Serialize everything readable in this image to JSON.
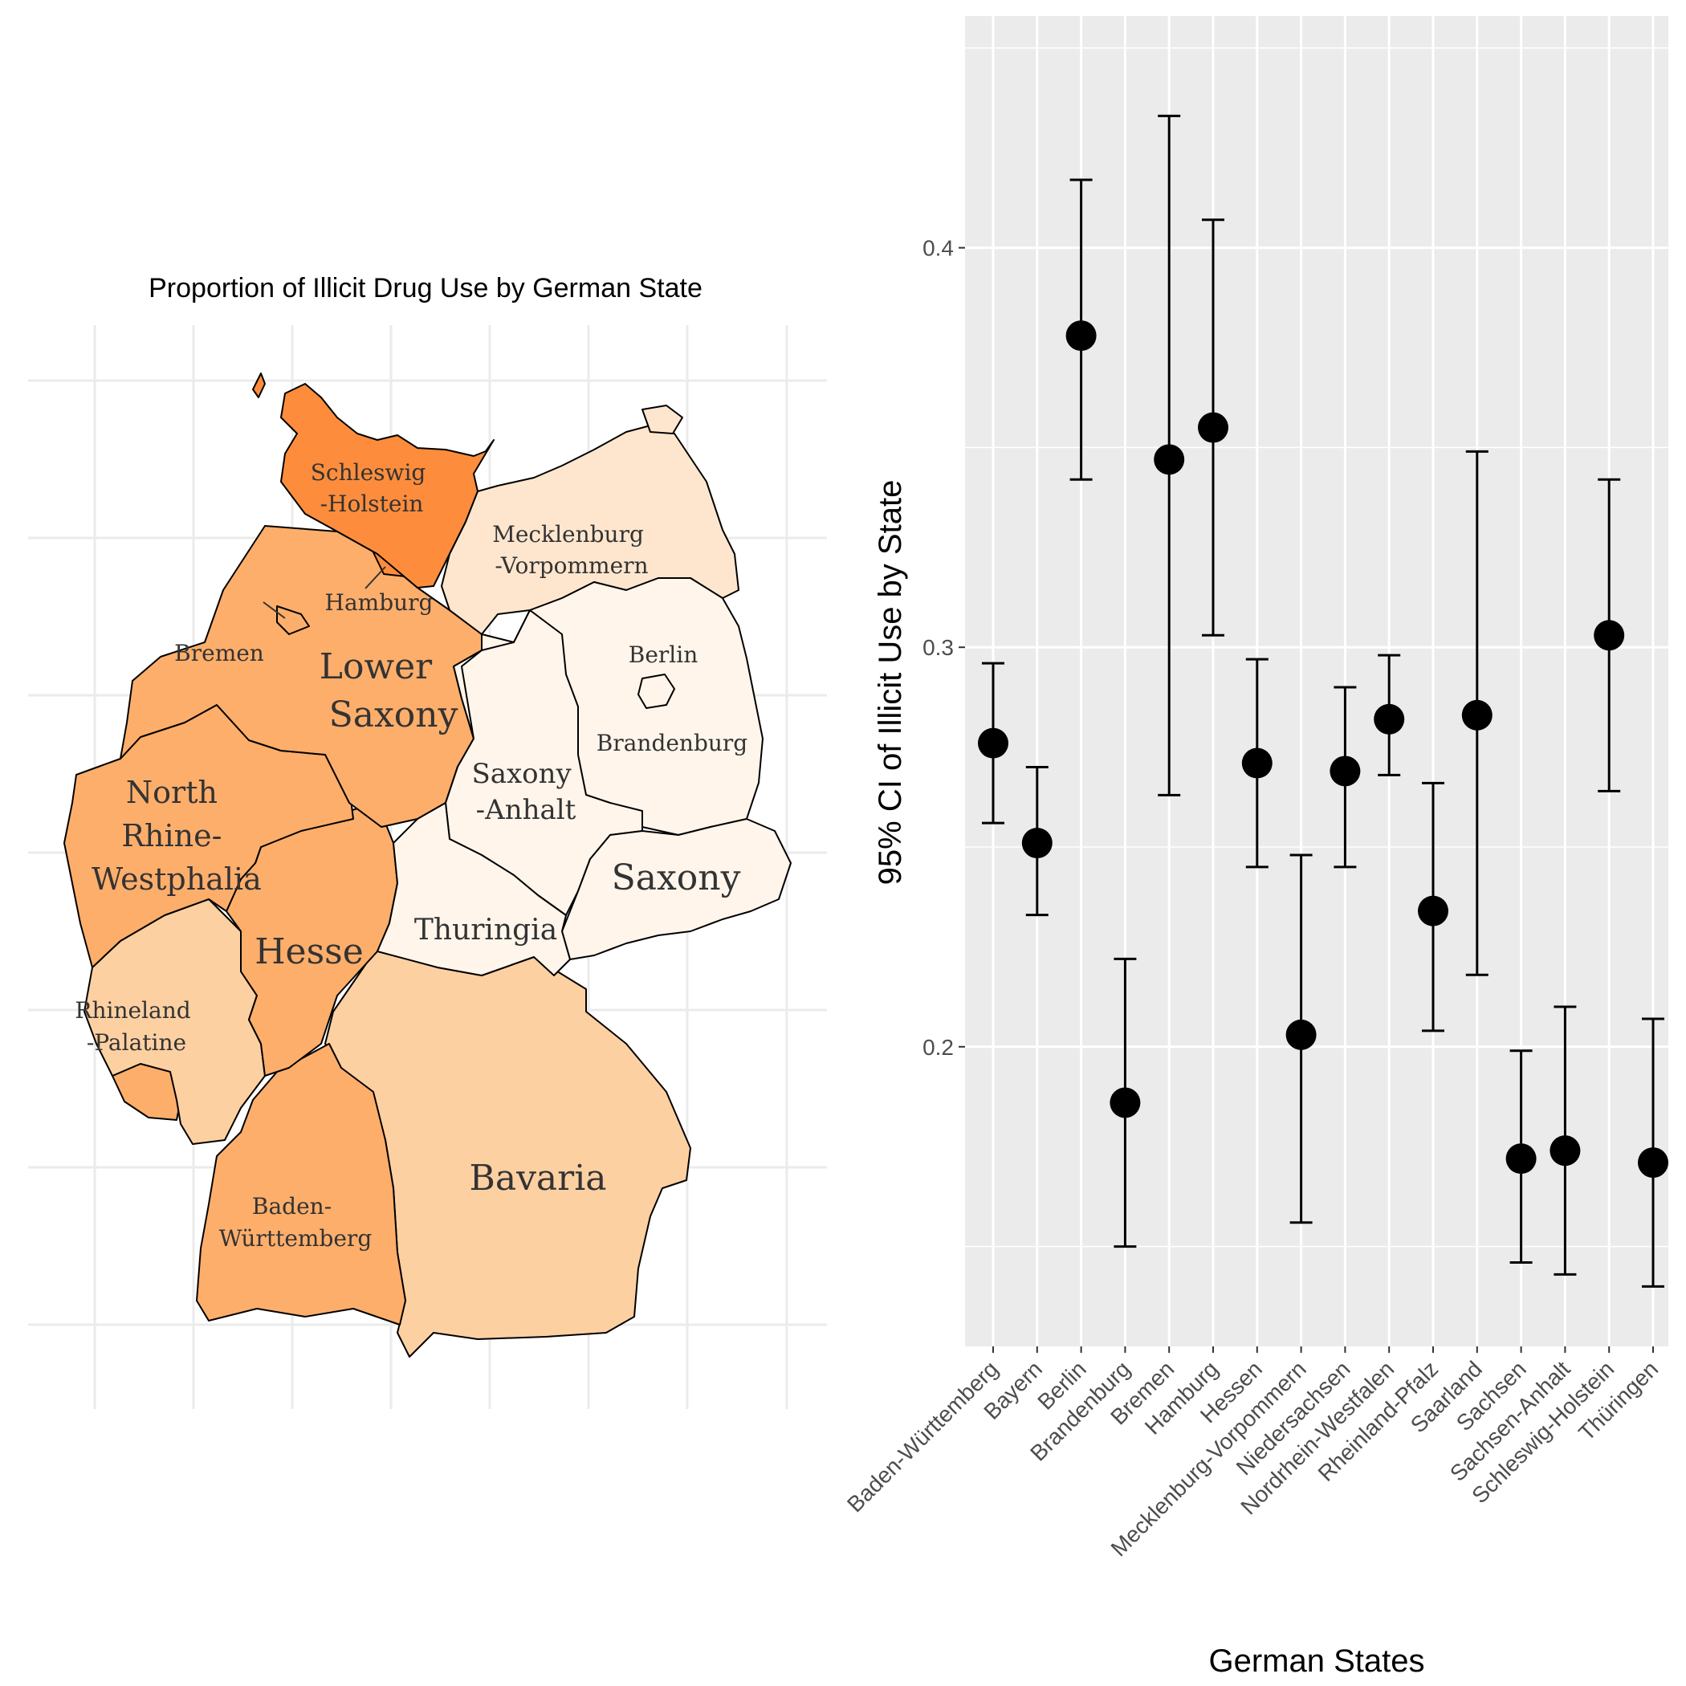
{
  "map": {
    "title": "Proportion of Illicit Drug Use by German State",
    "region_labels": [
      {
        "id": "sh",
        "lines": [
          "Schleswig",
          "-Holstein"
        ]
      },
      {
        "id": "mv",
        "lines": [
          "Mecklenburg",
          "-Vorpommern"
        ]
      },
      {
        "id": "hh",
        "lines": [
          "Hamburg"
        ]
      },
      {
        "id": "hb",
        "lines": [
          "Bremen"
        ]
      },
      {
        "id": "ni",
        "lines": [
          "Lower",
          "Saxony"
        ]
      },
      {
        "id": "be",
        "lines": [
          "Berlin"
        ]
      },
      {
        "id": "bb",
        "lines": [
          "Brandenburg"
        ]
      },
      {
        "id": "st",
        "lines": [
          "Saxony",
          "-Anhalt"
        ]
      },
      {
        "id": "nw",
        "lines": [
          "North",
          "Rhine-",
          "Westphalia"
        ]
      },
      {
        "id": "sn",
        "lines": [
          "Saxony"
        ]
      },
      {
        "id": "th",
        "lines": [
          "Thuringia"
        ]
      },
      {
        "id": "he",
        "lines": [
          "Hesse"
        ]
      },
      {
        "id": "rp",
        "lines": [
          "Rhineland",
          "-Palatine"
        ]
      },
      {
        "id": "by",
        "lines": [
          "Bavaria"
        ]
      },
      {
        "id": "bw",
        "lines": [
          "Baden-",
          "Württemberg"
        ]
      }
    ],
    "colors": {
      "highest": "#fd8d3c",
      "high": "#fdae6b",
      "medium": "#fdd0a2",
      "low": "#fee6ce",
      "lowest": "#fff5eb",
      "grid": "#ebebeb",
      "border": "#000000"
    }
  },
  "chart_data": {
    "type": "errorbar",
    "title": "",
    "xlabel": "German States",
    "ylabel": "95% CI of Illicit Use by State",
    "ylim": [
      0.125,
      0.458
    ],
    "yticks": [
      0.2,
      0.3,
      0.4
    ],
    "ytick_labels": [
      "0.2",
      "0.3",
      "0.4"
    ],
    "categories": [
      "Baden-Württemberg",
      "Bayern",
      "Berlin",
      "Brandenburg",
      "Bremen",
      "Hamburg",
      "Hessen",
      "Mecklenburg-Vorpommern",
      "Niedersachsen",
      "Nordrhein-Westfalen",
      "Rheinland-Pfalz",
      "Saarland",
      "Sachsen",
      "Sachsen-Anhalt",
      "Schleswig-Holstein",
      "Thüringen"
    ],
    "estimate": [
      0.276,
      0.251,
      0.378,
      0.186,
      0.347,
      0.355,
      0.271,
      0.203,
      0.269,
      0.282,
      0.234,
      0.283,
      0.172,
      0.174,
      0.303,
      0.171
    ],
    "lower": [
      0.256,
      0.233,
      0.342,
      0.15,
      0.263,
      0.303,
      0.245,
      0.156,
      0.245,
      0.268,
      0.204,
      0.218,
      0.146,
      0.143,
      0.264,
      0.14
    ],
    "upper": [
      0.296,
      0.27,
      0.417,
      0.222,
      0.433,
      0.407,
      0.297,
      0.248,
      0.29,
      0.298,
      0.266,
      0.349,
      0.199,
      0.21,
      0.342,
      0.207
    ],
    "grid": true,
    "colors": {
      "panel": "#ebebeb",
      "grid": "#ffffff",
      "point": "#000000"
    }
  }
}
